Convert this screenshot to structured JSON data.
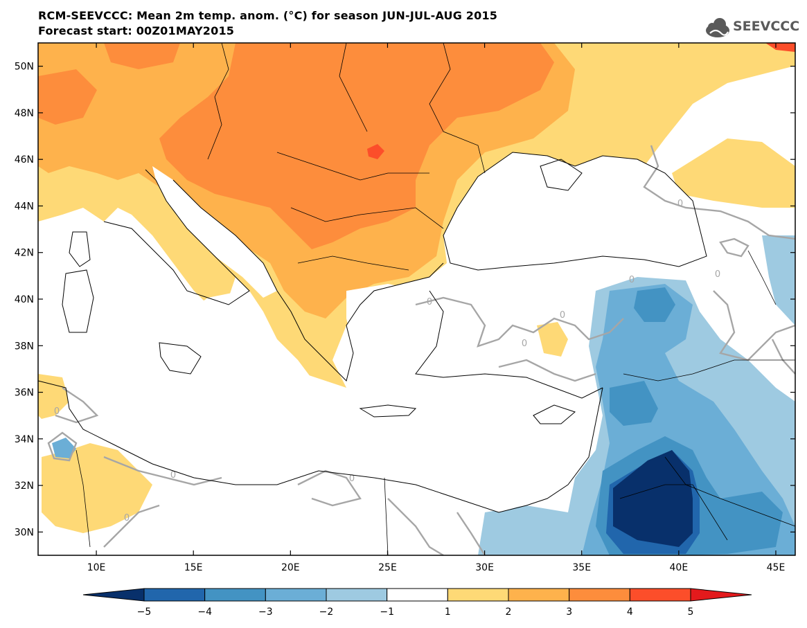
{
  "title": {
    "line1": "RCM-SEEVCCC: Mean 2m temp. anom. (°C) for season JUN-JUL-AUG 2015",
    "line2": "Forecast start: 00Z01MAY2015"
  },
  "logo": {
    "text": "SEEVCCC",
    "icon": "cloud-icon"
  },
  "axes": {
    "lon_labels": [
      "10E",
      "15E",
      "20E",
      "25E",
      "30E",
      "35E",
      "40E",
      "45E"
    ],
    "lat_labels": [
      "50N",
      "48N",
      "46N",
      "44N",
      "42N",
      "40N",
      "38N",
      "36N",
      "34N",
      "32N",
      "30N"
    ],
    "lon_range": [
      7,
      46
    ],
    "lat_range": [
      29,
      51
    ]
  },
  "legend": {
    "labels": [
      "−5",
      "−4",
      "−3",
      "−2",
      "−1",
      "1",
      "2",
      "3",
      "4",
      "5"
    ],
    "colors": [
      "#08306b",
      "#2166ac",
      "#4393c3",
      "#6baed6",
      "#9ecae1",
      "#ffffff",
      "#fed976",
      "#feb24c",
      "#fd8d3c",
      "#fc4e2a",
      "#e31a1c"
    ]
  },
  "contour_labels": [
    "0",
    "0",
    "0",
    "0",
    "0",
    "0",
    "0",
    "0",
    "0",
    "0"
  ],
  "colors": {
    "cold_strong": "#08306b",
    "cold": "#2166ac",
    "cool": "#4393c3",
    "cool_light": "#6baed6",
    "cool_lighter": "#9ecae1",
    "neutral": "#ffffff",
    "warm_light": "#fed976",
    "warm": "#feb24c",
    "warm_strong": "#fd8d3c",
    "hot": "#fc4e2a",
    "contour": "#a6a6a6"
  }
}
